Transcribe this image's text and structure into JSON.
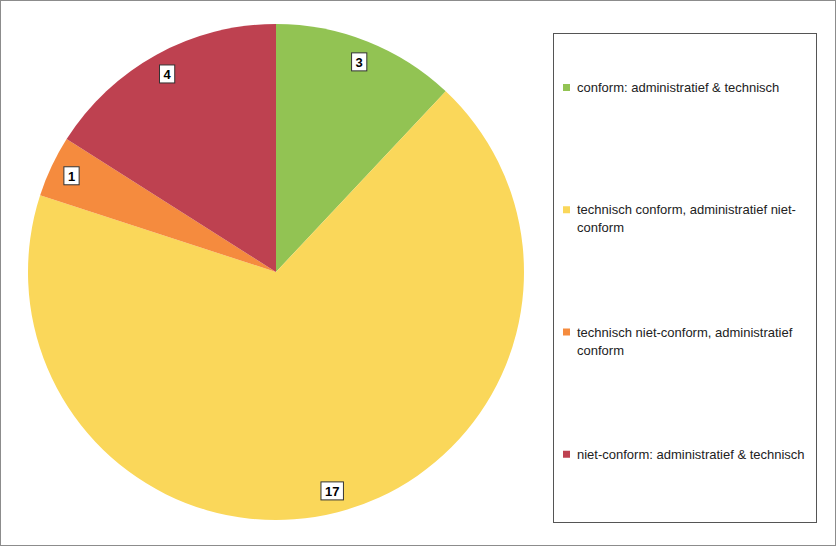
{
  "chart_data": {
    "type": "pie",
    "categories": [
      "conform: administratief & technisch",
      "technisch conform, administratief niet-conform",
      "technisch niet-conform, administratief conform",
      "niet-conform: administratief & technisch"
    ],
    "values": [
      3,
      17,
      1,
      4
    ],
    "colors": [
      "#92c353",
      "#fad75a",
      "#f58b3e",
      "#be4150"
    ],
    "data_labels": true,
    "legend": "right"
  }
}
